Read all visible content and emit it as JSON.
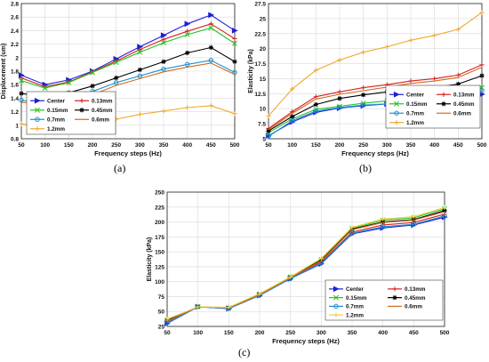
{
  "chart_data": [
    {
      "id": "a",
      "type": "line",
      "caption": "(a)",
      "xlabel": "Frequency steps (Hz)",
      "ylabel": "Displacement (um)",
      "x": [
        50,
        100,
        150,
        200,
        250,
        300,
        350,
        400,
        450,
        500
      ],
      "xlim": [
        50,
        500
      ],
      "ylim": [
        0.8,
        2.8
      ],
      "xticks": [
        "50",
        "100",
        "150",
        "200",
        "250",
        "300",
        "350",
        "400",
        "450",
        "500"
      ],
      "yticks": [
        "0.8",
        "1",
        "1.2",
        "1.4",
        "1.6",
        "1.8",
        "2",
        "2.2",
        "2.4",
        "2.6",
        "2.8"
      ],
      "grid": true,
      "legend": {
        "placement": "bottom-left",
        "columns": 2
      },
      "series": [
        {
          "name": "Center",
          "color": "#1f1fd6",
          "marker": ">",
          "values": [
            1.74,
            1.6,
            1.67,
            1.8,
            1.98,
            2.16,
            2.33,
            2.5,
            2.63,
            2.4
          ]
        },
        {
          "name": "0.13mm",
          "color": "#d62020",
          "marker": "+",
          "values": [
            1.7,
            1.57,
            1.64,
            1.79,
            1.95,
            2.12,
            2.27,
            2.39,
            2.5,
            2.28
          ]
        },
        {
          "name": "0.15mm",
          "color": "#22c422",
          "marker": "x",
          "values": [
            1.66,
            1.55,
            1.63,
            1.78,
            1.93,
            2.08,
            2.22,
            2.34,
            2.44,
            2.21
          ]
        },
        {
          "name": "0.45mm",
          "color": "#000000",
          "marker": "*",
          "values": [
            1.47,
            1.42,
            1.48,
            1.58,
            1.7,
            1.82,
            1.94,
            2.07,
            2.15,
            1.94
          ]
        },
        {
          "name": "0.7mm",
          "color": "#1e8fd0",
          "marker": "o",
          "values": [
            1.37,
            1.31,
            1.36,
            1.5,
            1.63,
            1.73,
            1.83,
            1.9,
            1.96,
            1.78
          ]
        },
        {
          "name": "0.6mm",
          "color": "#d2691e",
          "marker": "",
          "values": [
            1.34,
            1.3,
            1.3,
            1.45,
            1.59,
            1.69,
            1.79,
            1.86,
            1.92,
            1.75
          ]
        },
        {
          "name": "1.2mm",
          "color": "#f0a830",
          "marker": "+",
          "values": [
            1.02,
            0.97,
            0.97,
            1.02,
            1.09,
            1.16,
            1.21,
            1.26,
            1.29,
            1.17
          ]
        }
      ]
    },
    {
      "id": "b",
      "type": "line",
      "caption": "(b)",
      "xlabel": "Frequency steps (Hz)",
      "ylabel": "Elasticity (kPa)",
      "x": [
        50,
        100,
        150,
        200,
        250,
        300,
        350,
        400,
        450,
        500
      ],
      "xlim": [
        50,
        500
      ],
      "ylim": [
        5,
        27.5
      ],
      "xticks": [
        "50",
        "100",
        "150",
        "200",
        "250",
        "300",
        "350",
        "400",
        "450",
        "500"
      ],
      "yticks": [
        "5",
        "7.5",
        "10",
        "12.5",
        "15",
        "17.5",
        "20",
        "22.5",
        "25",
        "27.5"
      ],
      "grid": true,
      "legend": {
        "placement": "bottom-right",
        "columns": 2
      },
      "series": [
        {
          "name": "Center",
          "color": "#1f1fd6",
          "marker": ">",
          "values": [
            5.5,
            7.8,
            9.4,
            10.1,
            10.5,
            10.8,
            11.0,
            11.2,
            11.6,
            12.4
          ]
        },
        {
          "name": "0.13mm",
          "color": "#d62020",
          "marker": "+",
          "values": [
            6.7,
            9.5,
            12.0,
            12.8,
            13.5,
            14.0,
            14.6,
            15.0,
            15.6,
            17.3
          ]
        },
        {
          "name": "0.15mm",
          "color": "#22c422",
          "marker": "x",
          "values": [
            6.0,
            8.3,
            9.9,
            10.4,
            10.9,
            11.3,
            11.6,
            11.9,
            12.4,
            13.5
          ]
        },
        {
          "name": "0.45mm",
          "color": "#000000",
          "marker": "*",
          "values": [
            6.3,
            8.7,
            10.7,
            11.7,
            12.3,
            12.8,
            13.1,
            13.5,
            14.1,
            15.5
          ]
        },
        {
          "name": "0.7mm",
          "color": "#1e8fd0",
          "marker": "o",
          "values": [
            5.4,
            8.0,
            9.6,
            10.2,
            10.6,
            10.8,
            11.2,
            11.5,
            12.0,
            13.0
          ]
        },
        {
          "name": "0.6mm",
          "color": "#d2691e",
          "marker": "",
          "values": [
            6.5,
            9.2,
            11.6,
            12.4,
            13.0,
            13.6,
            14.2,
            14.6,
            15.2,
            16.9
          ]
        },
        {
          "name": "1.2mm",
          "color": "#f0a830",
          "marker": "+",
          "values": [
            8.8,
            13.3,
            16.4,
            18.1,
            19.4,
            20.3,
            21.4,
            22.2,
            23.2,
            26.0
          ]
        }
      ]
    },
    {
      "id": "c",
      "type": "line",
      "caption": "(c)",
      "xlabel": "Frequency steps (Hz)",
      "ylabel": "Elasticity (kPa)",
      "x": [
        50,
        100,
        150,
        200,
        250,
        300,
        350,
        400,
        450,
        500
      ],
      "xlim": [
        50,
        500
      ],
      "ylim": [
        25,
        250
      ],
      "xticks": [
        "50",
        "100",
        "150",
        "200",
        "250",
        "300",
        "350",
        "400",
        "450",
        "500"
      ],
      "yticks": [
        "25",
        "50",
        "75",
        "100",
        "125",
        "150",
        "175",
        "200",
        "225",
        "250"
      ],
      "grid": true,
      "legend": {
        "placement": "bottom-right",
        "columns": 2
      },
      "series": [
        {
          "name": "Center",
          "color": "#1f1fd6",
          "marker": ">",
          "values": [
            30,
            58,
            55,
            77,
            105,
            130,
            180,
            190,
            195,
            208
          ]
        },
        {
          "name": "0.13mm",
          "color": "#d62020",
          "marker": "+",
          "values": [
            33,
            58,
            56,
            78,
            106,
            133,
            183,
            195,
            199,
            213
          ]
        },
        {
          "name": "0.15mm",
          "color": "#22c422",
          "marker": "x",
          "values": [
            35,
            58,
            56,
            79,
            108,
            137,
            189,
            203,
            207,
            222
          ]
        },
        {
          "name": "0.45mm",
          "color": "#000000",
          "marker": "*",
          "values": [
            36,
            58,
            56,
            79,
            107,
            136,
            188,
            200,
            204,
            219
          ]
        },
        {
          "name": "0.7mm",
          "color": "#1e8fd0",
          "marker": "o",
          "values": [
            31,
            58,
            55,
            77,
            105,
            131,
            181,
            192,
            196,
            210
          ]
        },
        {
          "name": "0.6mm",
          "color": "#d2691e",
          "marker": "",
          "values": [
            34,
            58,
            56,
            78,
            107,
            135,
            187,
            199,
            203,
            217
          ]
        },
        {
          "name": "1.2mm",
          "color": "#f0d040",
          "marker": "+",
          "values": [
            37,
            58,
            57,
            80,
            108,
            139,
            191,
            205,
            209,
            224
          ]
        }
      ]
    }
  ]
}
